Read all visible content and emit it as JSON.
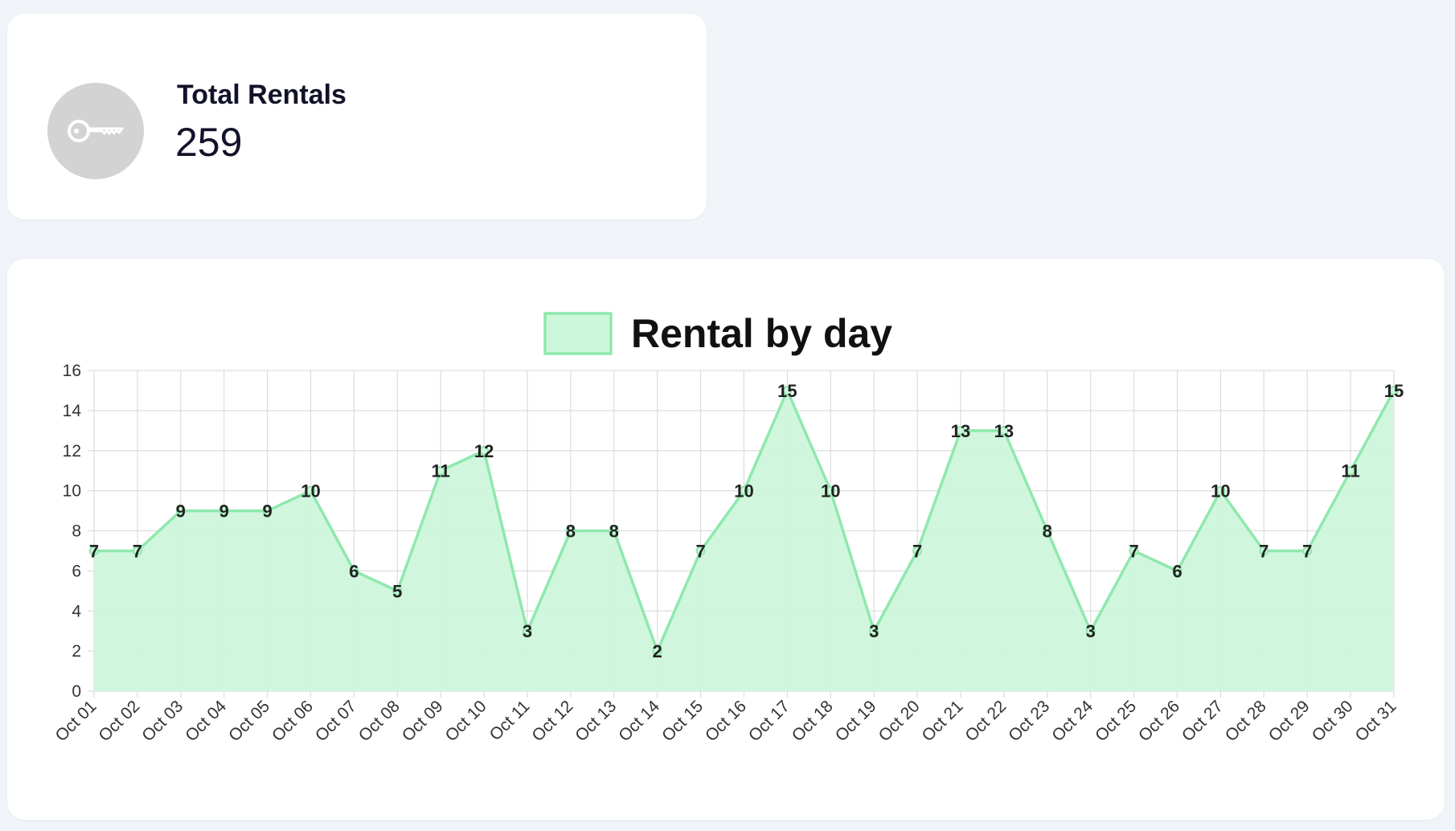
{
  "stat": {
    "title": "Total Rentals",
    "value": "259",
    "icon": "key-icon"
  },
  "colors": {
    "series_line": "#8fe8ad",
    "series_fill": "#cdf7db",
    "grid": "#dddddd",
    "icon_bg": "#d3d3d3"
  },
  "chart_data": {
    "type": "area",
    "legend": "top",
    "grid": true,
    "ylim": [
      0,
      16
    ],
    "yticks": [
      0,
      2,
      4,
      6,
      8,
      10,
      12,
      14,
      16
    ],
    "categories": [
      "Oct 01",
      "Oct 02",
      "Oct 03",
      "Oct 04",
      "Oct 05",
      "Oct 06",
      "Oct 07",
      "Oct 08",
      "Oct 09",
      "Oct 10",
      "Oct 11",
      "Oct 12",
      "Oct 13",
      "Oct 14",
      "Oct 15",
      "Oct 16",
      "Oct 17",
      "Oct 18",
      "Oct 19",
      "Oct 20",
      "Oct 21",
      "Oct 22",
      "Oct 23",
      "Oct 24",
      "Oct 25",
      "Oct 26",
      "Oct 27",
      "Oct 28",
      "Oct 29",
      "Oct 30",
      "Oct 31"
    ],
    "series": [
      {
        "name": "Rental by day",
        "values": [
          7,
          7,
          9,
          9,
          9,
          10,
          6,
          5,
          11,
          12,
          3,
          8,
          8,
          2,
          7,
          10,
          15,
          10,
          3,
          7,
          13,
          13,
          8,
          3,
          7,
          6,
          10,
          7,
          7,
          11,
          15
        ]
      }
    ]
  }
}
